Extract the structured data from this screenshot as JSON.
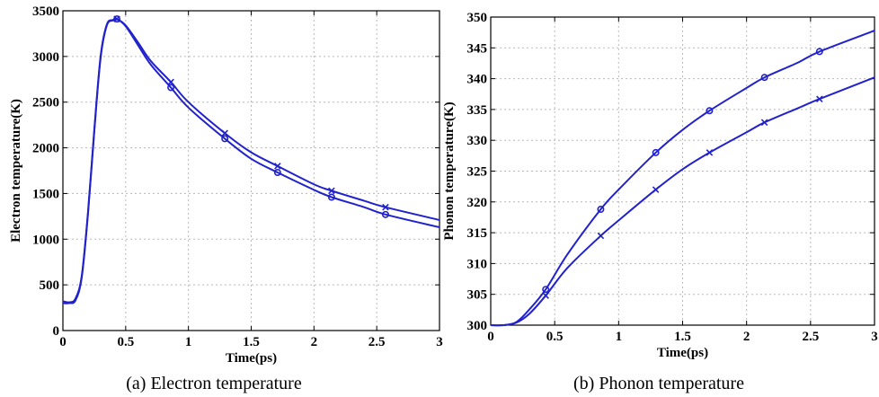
{
  "chart_data": [
    {
      "type": "line",
      "xlabel": "Time(ps)",
      "ylabel": "Electron temperature(K)",
      "caption": "(a) Electron temperature",
      "xlim": [
        0,
        3
      ],
      "ylim": [
        0,
        3500
      ],
      "xticks": [
        "0",
        "0.5",
        "1",
        "1.5",
        "2",
        "2.5",
        "3"
      ],
      "yticks": [
        "0",
        "500",
        "1000",
        "1500",
        "2000",
        "2500",
        "3000",
        "3500"
      ],
      "grid": true,
      "series": [
        {
          "marker": "x",
          "color": "#2222cc",
          "x": [
            0,
            0.05,
            0.1,
            0.15,
            0.2,
            0.25,
            0.3,
            0.35,
            0.4,
            0.43,
            0.5,
            0.6,
            0.7,
            0.86,
            1.0,
            1.29,
            1.5,
            1.71,
            2.0,
            2.14,
            2.4,
            2.57,
            3.0
          ],
          "y": [
            320,
            310,
            350,
            600,
            1300,
            2200,
            3000,
            3350,
            3400,
            3410,
            3340,
            3150,
            2950,
            2720,
            2500,
            2160,
            1950,
            1800,
            1600,
            1530,
            1420,
            1350,
            1210
          ]
        },
        {
          "marker": "o",
          "color": "#2222cc",
          "x": [
            0,
            0.05,
            0.1,
            0.15,
            0.2,
            0.25,
            0.3,
            0.35,
            0.4,
            0.43,
            0.5,
            0.6,
            0.7,
            0.86,
            1.0,
            1.29,
            1.5,
            1.71,
            2.0,
            2.14,
            2.4,
            2.57,
            3.0
          ],
          "y": [
            300,
            300,
            330,
            580,
            1280,
            2180,
            2980,
            3340,
            3395,
            3410,
            3330,
            3120,
            2910,
            2660,
            2440,
            2100,
            1880,
            1730,
            1540,
            1460,
            1350,
            1270,
            1130
          ]
        }
      ],
      "marker_x": [
        0.43,
        0.86,
        1.29,
        1.71,
        2.14,
        2.57
      ]
    },
    {
      "type": "line",
      "xlabel": "Time(ps)",
      "ylabel": "Phonon temperature(K)",
      "caption": "(b) Phonon temperature",
      "xlim": [
        0,
        3
      ],
      "ylim": [
        300,
        350
      ],
      "xticks": [
        "0",
        "0.5",
        "1",
        "1.5",
        "2",
        "2.5",
        "3"
      ],
      "yticks": [
        "300",
        "305",
        "310",
        "315",
        "320",
        "325",
        "330",
        "335",
        "340",
        "345",
        "350"
      ],
      "grid": true,
      "series": [
        {
          "marker": "o",
          "color": "#2222cc",
          "x": [
            0,
            0.1,
            0.2,
            0.3,
            0.43,
            0.6,
            0.86,
            1.0,
            1.29,
            1.5,
            1.71,
            2.0,
            2.14,
            2.4,
            2.57,
            3.0
          ],
          "y": [
            300,
            300,
            300.5,
            302.5,
            305.8,
            311.5,
            318.8,
            322,
            328,
            331.7,
            334.8,
            338.5,
            340.2,
            342.6,
            344.4,
            347.8
          ]
        },
        {
          "marker": "x",
          "color": "#2222cc",
          "x": [
            0,
            0.1,
            0.2,
            0.3,
            0.43,
            0.6,
            0.86,
            1.0,
            1.29,
            1.5,
            1.71,
            2.0,
            2.14,
            2.4,
            2.57,
            3.0
          ],
          "y": [
            300,
            300,
            300.4,
            301.8,
            304.8,
            309.3,
            314.5,
            317,
            322,
            325.3,
            328,
            331.3,
            332.9,
            335.2,
            336.7,
            340.2
          ]
        }
      ],
      "marker_x": [
        0.43,
        0.86,
        1.29,
        1.71,
        2.14,
        2.57
      ]
    }
  ]
}
